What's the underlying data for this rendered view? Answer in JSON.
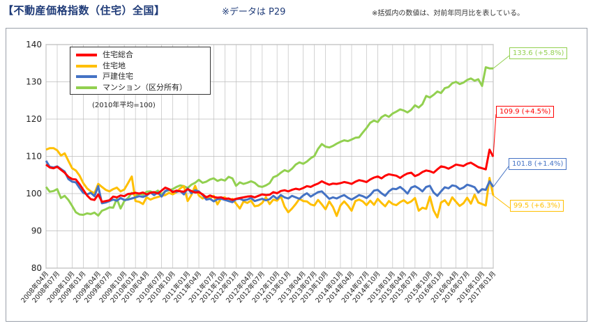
{
  "header": {
    "title": "【不動産価格指数（住宅）全国】",
    "subtitle": "※データは P29",
    "footnote": "※括弧内の数値は、対前年同月比を表している。"
  },
  "chart_data": {
    "type": "line",
    "ylim": [
      80,
      140
    ],
    "yticks": [
      80,
      90,
      100,
      110,
      120,
      130,
      140
    ],
    "base_note": "(2010年平均=100)",
    "xtick_labels": [
      "2008年04月",
      "2008年07月",
      "2008年10月",
      "2009年01月",
      "2009年04月",
      "2009年07月",
      "2009年10月",
      "2010年01月",
      "2010年04月",
      "2010年07月",
      "2010年10月",
      "2011年01月",
      "2011年04月",
      "2011年07月",
      "2011年10月",
      "2012年01月",
      "2012年04月",
      "2012年07月",
      "2012年10月",
      "2013年01月",
      "2013年04月",
      "2013年07月",
      "2013年10月",
      "2014年01月",
      "2014年04月",
      "2014年07月",
      "2014年10月",
      "2015年01月",
      "2015年04月",
      "2015年07月",
      "2015年10月",
      "2016年01月",
      "2016年04月",
      "2016年07月",
      "2016年10月",
      "2017年01月"
    ],
    "series": [
      {
        "name": "住宅総合",
        "color": "#ff0000",
        "values": [
          107.8,
          107.0,
          106.8,
          107.2,
          106.4,
          105.6,
          104.5,
          103.9,
          103.8,
          102.5,
          101.0,
          99.5,
          98.5,
          98.3,
          99.8,
          97.8,
          98.0,
          98.2,
          99.2,
          99.0,
          99.5,
          99.3,
          99.9,
          100.0,
          100.2,
          100.0,
          100.3,
          99.8,
          100.2,
          100.4,
          100.0,
          100.8,
          101.6,
          101.2,
          100.4,
          100.8,
          100.6,
          100.5,
          101.2,
          100.7,
          100.3,
          100.4,
          99.8,
          99.0,
          99.5,
          99.1,
          98.9,
          99.0,
          98.6,
          98.7,
          98.3,
          98.6,
          98.8,
          99.0,
          99.2,
          99.3,
          99.0,
          99.4,
          99.8,
          99.6,
          99.7,
          100.4,
          100.1,
          100.7,
          100.9,
          100.6,
          101.0,
          101.3,
          101.1,
          101.5,
          102.0,
          101.8,
          102.3,
          102.7,
          103.3,
          102.8,
          102.4,
          102.7,
          102.6,
          102.8,
          103.1,
          102.9,
          102.6,
          103.2,
          103.6,
          103.4,
          103.1,
          103.8,
          104.3,
          104.6,
          104.1,
          104.8,
          105.2,
          105.0,
          104.8,
          104.2,
          104.9,
          105.4,
          105.6,
          104.7,
          105.1,
          105.8,
          106.2,
          106.0,
          105.6,
          106.5,
          107.3,
          107.1,
          106.7,
          107.2,
          107.8,
          107.6,
          107.4,
          108.0,
          108.3,
          107.7,
          107.1,
          106.8,
          106.5,
          111.8,
          109.9
        ]
      },
      {
        "name": "住宅地",
        "color": "#ffbf00",
        "values": [
          111.8,
          112.2,
          112.2,
          111.6,
          110.2,
          110.8,
          108.8,
          106.8,
          106.2,
          104.8,
          102.8,
          101.4,
          100.6,
          100.1,
          102.6,
          101.8,
          101.0,
          100.6,
          101.2,
          101.6,
          100.6,
          101.1,
          102.8,
          104.6,
          98.0,
          97.8,
          97.2,
          99.0,
          98.4,
          98.8,
          99.1,
          99.4,
          99.6,
          100.2,
          99.8,
          100.4,
          101.4,
          102.0,
          98.0,
          99.6,
          102.1,
          99.5,
          98.7,
          99.2,
          98.7,
          99.4,
          97.1,
          98.8,
          99.0,
          98.0,
          98.6,
          97.3,
          96.0,
          97.9,
          97.5,
          98.1,
          96.6,
          96.8,
          97.5,
          99.0,
          97.2,
          98.4,
          98.1,
          99.3,
          96.5,
          95.0,
          96.0,
          97.2,
          98.6,
          98.0,
          97.9,
          97.1,
          96.8,
          98.3,
          97.1,
          95.8,
          97.9,
          96.4,
          94.0,
          96.8,
          97.9,
          96.8,
          95.4,
          98.0,
          98.4,
          97.9,
          96.9,
          98.1,
          97.0,
          98.6,
          97.5,
          96.6,
          98.0,
          97.2,
          96.9,
          97.7,
          98.2,
          97.4,
          97.9,
          98.8,
          95.4,
          96.2,
          95.9,
          99.2,
          95.5,
          93.6,
          97.6,
          98.2,
          96.9,
          99.0,
          97.8,
          96.7,
          97.4,
          98.9,
          97.3,
          99.7,
          97.6,
          97.2,
          96.8,
          104.2,
          99.5
        ]
      },
      {
        "name": "戸建住宅",
        "color": "#4472c4",
        "values": [
          108.8,
          107.2,
          107.0,
          107.3,
          106.6,
          105.9,
          103.9,
          103.2,
          103.0,
          101.5,
          100.2,
          99.8,
          100.2,
          99.3,
          102.0,
          97.4,
          97.6,
          98.0,
          98.4,
          98.1,
          98.8,
          98.3,
          98.4,
          98.7,
          99.0,
          99.3,
          99.1,
          99.5,
          100.3,
          99.6,
          100.3,
          99.2,
          100.7,
          101.1,
          100.6,
          100.5,
          100.7,
          99.8,
          101.4,
          100.1,
          100.9,
          100.6,
          99.6,
          98.4,
          98.6,
          97.9,
          98.5,
          98.6,
          98.3,
          98.0,
          97.7,
          98.5,
          98.6,
          98.2,
          98.4,
          98.8,
          98.0,
          98.3,
          98.6,
          98.2,
          98.5,
          99.4,
          98.6,
          99.6,
          99.0,
          98.7,
          99.4,
          99.0,
          98.6,
          99.5,
          100.1,
          99.2,
          99.8,
          100.4,
          100.6,
          99.6,
          98.6,
          99.0,
          98.7,
          99.2,
          99.6,
          98.9,
          98.4,
          99.0,
          99.6,
          99.3,
          98.8,
          99.6,
          100.8,
          101.0,
          100.1,
          99.4,
          100.6,
          101.3,
          101.2,
          101.8,
          101.0,
          100.0,
          101.6,
          102.0,
          101.4,
          100.6,
          101.8,
          102.1,
          100.3,
          99.4,
          100.6,
          101.7,
          101.4,
          102.2,
          102.0,
          101.2,
          101.6,
          102.4,
          102.1,
          101.7,
          100.3,
          101.2,
          101.0,
          103.3,
          101.8
        ]
      },
      {
        "name": "マンション（区分所有）",
        "color": "#92d050",
        "values": [
          101.8,
          100.5,
          100.7,
          101.2,
          98.8,
          99.4,
          98.3,
          96.7,
          95.0,
          94.4,
          94.3,
          94.7,
          94.5,
          94.9,
          94.1,
          95.4,
          95.8,
          96.3,
          96.2,
          98.6,
          96.0,
          98.0,
          98.8,
          100.2,
          99.4,
          100.0,
          99.7,
          100.5,
          100.6,
          100.2,
          100.8,
          99.8,
          100.6,
          100.9,
          101.2,
          101.8,
          102.2,
          102.0,
          101.5,
          102.4,
          102.9,
          103.7,
          102.9,
          103.2,
          103.8,
          104.1,
          103.4,
          103.8,
          103.5,
          104.5,
          104.1,
          102.1,
          103.0,
          102.6,
          102.9,
          103.3,
          102.9,
          102.0,
          101.8,
          102.2,
          102.8,
          104.4,
          104.8,
          105.6,
          106.3,
          105.9,
          106.7,
          107.8,
          108.4,
          108.0,
          108.6,
          109.5,
          110.1,
          112.0,
          113.3,
          112.6,
          112.4,
          112.8,
          113.4,
          113.9,
          114.3,
          114.1,
          114.5,
          115.0,
          115.1,
          116.4,
          117.6,
          119.0,
          119.6,
          119.2,
          120.5,
          121.1,
          120.6,
          121.5,
          122.0,
          122.6,
          122.3,
          121.8,
          122.5,
          123.7,
          123.1,
          124.0,
          126.2,
          125.8,
          126.5,
          127.4,
          127.0,
          128.3,
          128.6,
          129.6,
          130.0,
          129.4,
          129.8,
          130.5,
          130.9,
          130.3,
          130.7,
          128.9,
          133.9,
          133.6,
          133.6
        ]
      }
    ],
    "legend": {
      "placement": "top-left"
    }
  },
  "callouts": [
    {
      "text": "133.6 (+5.8%)",
      "color": "#92d050"
    },
    {
      "text": "109.9 (+4.5%)",
      "color": "#ff0000"
    },
    {
      "text": "101.8 (+1.4%)",
      "color": "#4472c4"
    },
    {
      "text": "99.5 (+6.3%)",
      "color": "#ffbf00"
    }
  ]
}
